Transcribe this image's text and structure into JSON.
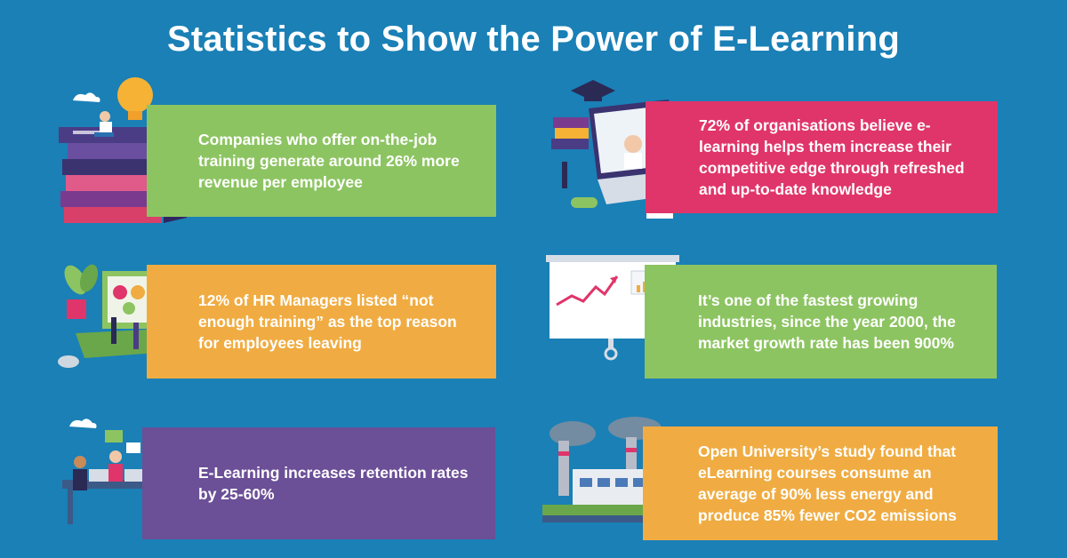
{
  "title": "Statistics to Show the Power of E-Learning",
  "cards": [
    {
      "text": "Companies who offer on-the-job training generate around 26% more revenue per employee",
      "color": "#8dc462"
    },
    {
      "text": "72% of organisations believe e-learning helps them increase their competitive edge through refreshed and up-to-date knowledge",
      "color": "#e0356a"
    },
    {
      "text": "12% of HR Managers listed “not enough training” as the top reason for employees leaving",
      "color": "#f0ac42"
    },
    {
      "text": "It’s one of the fastest growing industries, since the year 2000, the market growth rate has been 900%",
      "color": "#8dc462"
    },
    {
      "text": "E-Learning increases retention rates by 25-60%",
      "color": "#6b4f97"
    },
    {
      "text": "Open University’s study found that eLearning courses consume an average of 90% less energy and produce 85% fewer CO2 emissions",
      "color": "#f0ac42"
    }
  ],
  "background_color": "#1a80b6",
  "illustrations": [
    "stacked-books-reader-icon",
    "laptop-graduation-icon",
    "laptop-plant-icon",
    "whiteboard-presenter-icon",
    "team-meeting-icon",
    "factory-icon"
  ]
}
